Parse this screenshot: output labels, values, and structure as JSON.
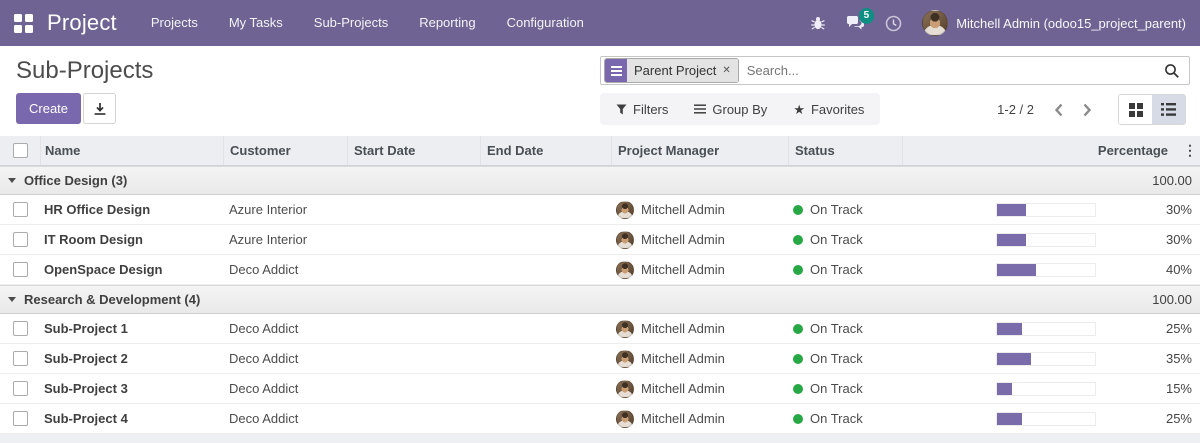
{
  "navbar": {
    "app_name": "Project",
    "menu_items": [
      "Projects",
      "My Tasks",
      "Sub-Projects",
      "Reporting",
      "Configuration"
    ],
    "message_badge": "5",
    "user": "Mitchell Admin (odoo15_project_parent)"
  },
  "breadcrumb": {
    "title": "Sub-Projects"
  },
  "search": {
    "facet_label": "Parent Project",
    "facet_remove": "✕",
    "placeholder": "Search..."
  },
  "control_panel": {
    "create_label": "Create",
    "filters_label": "Filters",
    "group_by_label": "Group By",
    "favorites_label": "Favorites",
    "pager": "1-2 / 2"
  },
  "table": {
    "columns": [
      "Name",
      "Customer",
      "Start Date",
      "End Date",
      "Project Manager",
      "Status",
      "Percentage"
    ],
    "options_toggle_icon": "⋮",
    "groups": [
      {
        "label": "Office Design (3)",
        "aggregate": "100.00",
        "rows": [
          {
            "name": "HR Office Design",
            "customer": "Azure Interior",
            "start_date": "",
            "end_date": "",
            "manager": "Mitchell Admin",
            "status": "On Track",
            "percentage": 30,
            "percentage_label": "30%"
          },
          {
            "name": "IT Room Design",
            "customer": "Azure Interior",
            "start_date": "",
            "end_date": "",
            "manager": "Mitchell Admin",
            "status": "On Track",
            "percentage": 30,
            "percentage_label": "30%"
          },
          {
            "name": "OpenSpace Design",
            "customer": "Deco Addict",
            "start_date": "",
            "end_date": "",
            "manager": "Mitchell Admin",
            "status": "On Track",
            "percentage": 40,
            "percentage_label": "40%"
          }
        ]
      },
      {
        "label": "Research & Development (4)",
        "aggregate": "100.00",
        "rows": [
          {
            "name": "Sub-Project 1",
            "customer": "Deco Addict",
            "start_date": "",
            "end_date": "",
            "manager": "Mitchell Admin",
            "status": "On Track",
            "percentage": 25,
            "percentage_label": "25%"
          },
          {
            "name": "Sub-Project 2",
            "customer": "Deco Addict",
            "start_date": "",
            "end_date": "",
            "manager": "Mitchell Admin",
            "status": "On Track",
            "percentage": 35,
            "percentage_label": "35%"
          },
          {
            "name": "Sub-Project 3",
            "customer": "Deco Addict",
            "start_date": "",
            "end_date": "",
            "manager": "Mitchell Admin",
            "status": "On Track",
            "percentage": 15,
            "percentage_label": "15%"
          },
          {
            "name": "Sub-Project 4",
            "customer": "Deco Addict",
            "start_date": "",
            "end_date": "",
            "manager": "Mitchell Admin",
            "status": "On Track",
            "percentage": 25,
            "percentage_label": "25%"
          }
        ]
      }
    ]
  },
  "colors": {
    "navbar": "#6e6392",
    "primary": "#7a68ae",
    "progress": "#7a6baa",
    "success": "#28a745",
    "badge": "#0f8e84",
    "switcher_active": "#d6dbe5"
  }
}
